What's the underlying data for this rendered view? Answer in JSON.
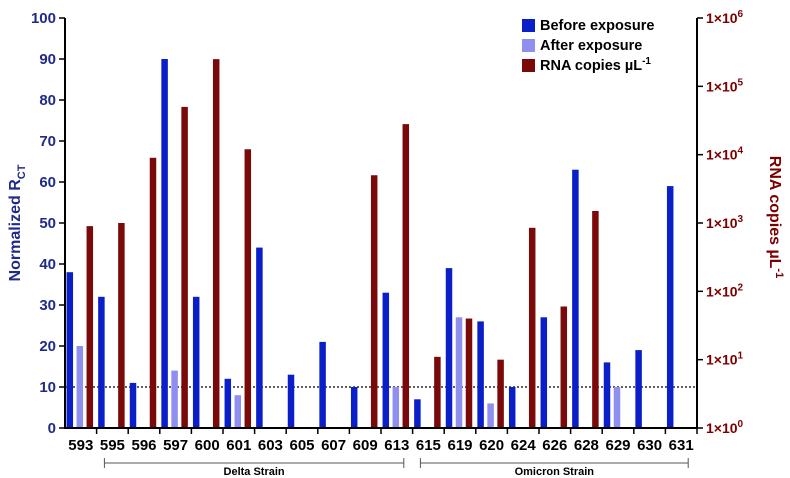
{
  "chart_data": {
    "type": "bar",
    "categories": [
      "593",
      "595",
      "596",
      "597",
      "600",
      "601",
      "603",
      "605",
      "607",
      "609",
      "613",
      "615",
      "619",
      "620",
      "624",
      "626",
      "628",
      "629",
      "630",
      "631"
    ],
    "series": [
      {
        "name": "Before exposure",
        "axis": "left",
        "color": "#0a1fc8",
        "values": [
          38,
          32,
          11,
          90,
          32,
          12,
          44,
          13,
          21,
          10,
          33,
          7,
          39,
          26,
          10,
          27,
          63,
          16,
          19,
          59
        ]
      },
      {
        "name": "After exposure",
        "axis": "left",
        "color": "#8f8ff0",
        "values": [
          20,
          null,
          null,
          14,
          null,
          8,
          null,
          null,
          null,
          null,
          10,
          null,
          27,
          6,
          null,
          null,
          null,
          10,
          null,
          null
        ]
      },
      {
        "name": "RNA copies µL-1",
        "axis": "right",
        "color": "#7a0a0a",
        "values": [
          900,
          1000,
          9000,
          50000,
          250000,
          12000,
          null,
          null,
          null,
          5000,
          28000,
          11,
          40,
          10,
          850,
          60,
          1500,
          null,
          null,
          null
        ]
      }
    ],
    "ylabel_left": "Normalized R",
    "ylabel_left_sub": "CT",
    "ylabel_right": "RNA copies µL",
    "ylabel_right_sup": "-1",
    "ylim_left": [
      0,
      100
    ],
    "yticks_left": [
      "0",
      "10",
      "20",
      "30",
      "40",
      "50",
      "60",
      "70",
      "80",
      "90",
      "100"
    ],
    "ylim_right_log10": [
      0,
      6
    ],
    "yticks_right": [
      {
        "base": "1×10",
        "exp": "0"
      },
      {
        "base": "1×10",
        "exp": "1"
      },
      {
        "base": "1×10",
        "exp": "2"
      },
      {
        "base": "1×10",
        "exp": "3"
      },
      {
        "base": "1×10",
        "exp": "4"
      },
      {
        "base": "1×10",
        "exp": "5"
      },
      {
        "base": "1×10",
        "exp": "6"
      }
    ],
    "threshold": 10,
    "legend_position": "top-right",
    "legend": [
      {
        "label": "Before exposure",
        "color": "#0a1fc8",
        "sup": ""
      },
      {
        "label": "After exposure",
        "color": "#8f8ff0",
        "sup": ""
      },
      {
        "label": "RNA copies µL",
        "color": "#7a0a0a",
        "sup": "-1"
      }
    ],
    "groups": [
      {
        "label": "Delta Strain",
        "from": "595",
        "to": "613"
      },
      {
        "label": "Omicron Strain",
        "from": "615",
        "to": "631"
      }
    ]
  }
}
